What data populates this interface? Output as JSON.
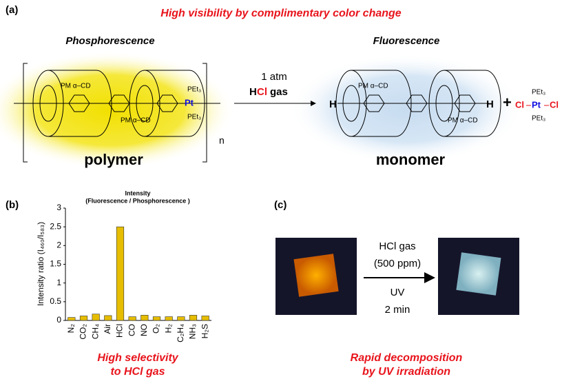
{
  "panel_a": {
    "label": "(a)",
    "headline": "High visibility by complimentary color change",
    "left_title": "Phosphorescence",
    "right_title": "Fluorescence",
    "reagent": {
      "line1": "1 atm",
      "h": "H",
      "cl": "Cl",
      "gas": "gas"
    },
    "cd_label": "PM α–CD",
    "pet3": "PEt₃",
    "pt": "Pt",
    "h_end": "H",
    "n": "n",
    "cl": "Cl",
    "plus": "+",
    "polymer": "polymer",
    "monomer": "monomer"
  },
  "chart_data": {
    "type": "bar",
    "label": "(b)",
    "title": "Intensity",
    "subtitle": "(Fluorescence / Phosphorescence )",
    "ylabel": "Intensity ratio (I₄₆₀/I₅₈₃)",
    "categories": [
      "N₂",
      "CO₂",
      "CH₄",
      "Air",
      "HCl",
      "CO",
      "NO",
      "O₂",
      "H₂",
      "C₂H₄",
      "NH₃",
      "H₂S"
    ],
    "values": [
      0.08,
      0.12,
      0.17,
      0.13,
      2.5,
      0.1,
      0.14,
      0.1,
      0.1,
      0.1,
      0.14,
      0.12
    ],
    "color": "#e6bd00",
    "ylim": [
      0,
      3
    ],
    "yticks": [
      0,
      0.5,
      1,
      1.5,
      2,
      2.5,
      3
    ],
    "caption": [
      "High selectivity",
      "to HCl gas"
    ]
  },
  "panel_c": {
    "label": "(c)",
    "conditions": [
      "HCl gas",
      "(500 ppm)",
      "UV",
      "2 min"
    ],
    "caption": [
      "Rapid decomposition",
      "by UV irradiation"
    ]
  }
}
